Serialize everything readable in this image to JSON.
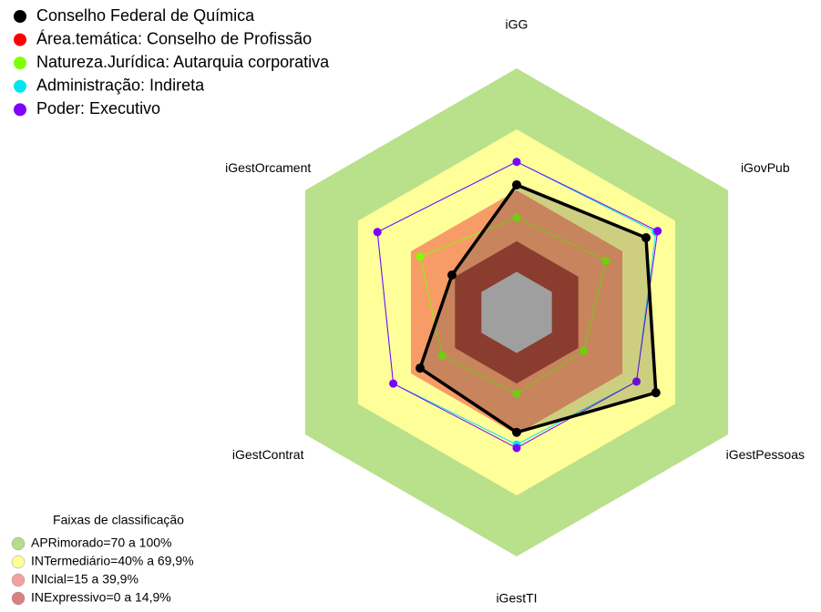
{
  "chart_data": {
    "type": "radar",
    "categories": [
      "iGG",
      "iGovPub",
      "iGestPessoas",
      "iGestTI",
      "iGestContrat",
      "iGestOrcament"
    ],
    "rlim": [
      -20,
      100
    ],
    "series": [
      {
        "name": "Área.temática: Conselho de Profissão",
        "color": "#ff0000",
        "values": [
          42.7,
          53.4,
          59,
          39,
          34.8,
          16.7
        ]
      },
      {
        "name": "Natureza.Jurídica: Autarquia corporativa",
        "color": "#7fff00",
        "values": [
          26.6,
          30.7,
          18,
          20,
          22.4,
          34.8
        ]
      },
      {
        "name": "Administração: Indireta",
        "color": "#00e5ee",
        "values": [
          54,
          59,
          48,
          45,
          50,
          59
        ]
      },
      {
        "name": "Poder: Executivo",
        "color": "#7f00ff",
        "values": [
          54,
          60,
          48,
          46.7,
          50,
          59
        ]
      },
      {
        "name": "Conselho Federal de Química",
        "color": "#000000",
        "values": [
          42.7,
          53.4,
          59,
          39,
          34.8,
          16.7
        ]
      }
    ],
    "legend_order": [
      4,
      0,
      1,
      2,
      3
    ],
    "bands_title": "Faixas de classificação",
    "bands": [
      {
        "label": "APRimorado=70 a 100%",
        "min": 70,
        "max": 100,
        "color": "#b9e08b",
        "legend_color": "#b5de8a"
      },
      {
        "label": "INTermediário=40% a 69,9%",
        "min": 40,
        "max": 70,
        "color": "#ffff99",
        "legend_color": "#ffff99"
      },
      {
        "label": "INIcial=15 a 39,9%",
        "min": 15,
        "max": 40,
        "color": "#f79c67",
        "legend_color": "#f4a0a0"
      },
      {
        "label": "INExpressivo=0 a 14,9%",
        "min": 0,
        "max": 15,
        "color": "#a53c2a",
        "legend_color": "#d98080"
      }
    ]
  }
}
